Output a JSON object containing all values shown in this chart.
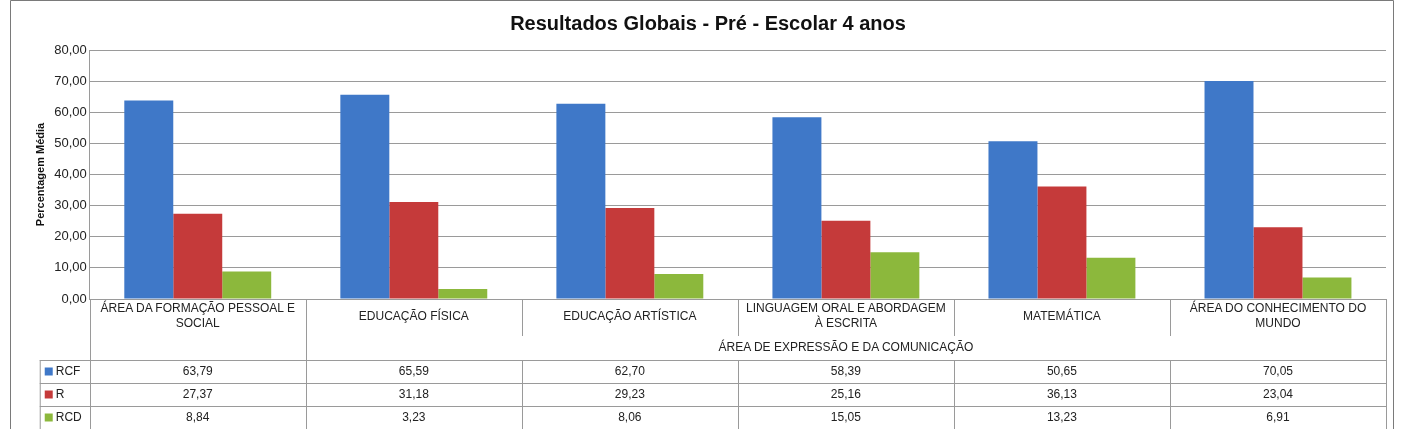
{
  "chart_data": {
    "type": "bar",
    "title": "Resultados Globais - Pré - Escolar 4 anos",
    "ylabel": "Percentagem Média",
    "categories": [
      "ÁREA DA FORMAÇÃO PESSOAL E SOCIAL",
      "EDUCAÇÃO FÍSICA",
      "EDUCAÇÃO ARTÍSTICA",
      "LINGUAGEM ORAL E ABORDAGEM À ESCRITA",
      "MATEMÁTICA",
      "ÁREA DO CONHECIMENTO DO MUNDO"
    ],
    "annotations": [
      "ÁREA DE EXPRESSÃO E DA COMUNICAÇÃO"
    ],
    "series": [
      {
        "name": "RCF",
        "color": "#3f78c8",
        "values": [
          63.79,
          65.59,
          62.7,
          58.39,
          50.65,
          70.05
        ],
        "value_labels": [
          "63,79",
          "65,59",
          "62,70",
          "58,39",
          "50,65",
          "70,05"
        ]
      },
      {
        "name": "R",
        "color": "#c53a3a",
        "values": [
          27.37,
          31.18,
          29.23,
          25.16,
          36.13,
          23.04
        ],
        "value_labels": [
          "27,37",
          "31,18",
          "29,23",
          "25,16",
          "36,13",
          "23,04"
        ]
      },
      {
        "name": "RCD",
        "color": "#8cb83c",
        "values": [
          8.84,
          3.23,
          8.06,
          15.05,
          13.23,
          6.91
        ],
        "value_labels": [
          "8,84",
          "3,23",
          "8,06",
          "15,05",
          "13,23",
          "6,91"
        ]
      }
    ],
    "ylim": [
      0,
      80
    ],
    "yticks": [
      {
        "value": 0,
        "label": "0,00"
      },
      {
        "value": 10,
        "label": "10,00"
      },
      {
        "value": 20,
        "label": "20,00"
      },
      {
        "value": 30,
        "label": "30,00"
      },
      {
        "value": 40,
        "label": "40,00"
      },
      {
        "value": 50,
        "label": "50,00"
      },
      {
        "value": 60,
        "label": "60,00"
      },
      {
        "value": 70,
        "label": "70,00"
      },
      {
        "value": 80,
        "label": "80,00"
      }
    ],
    "grid": "y",
    "legend": "bottom left"
  }
}
